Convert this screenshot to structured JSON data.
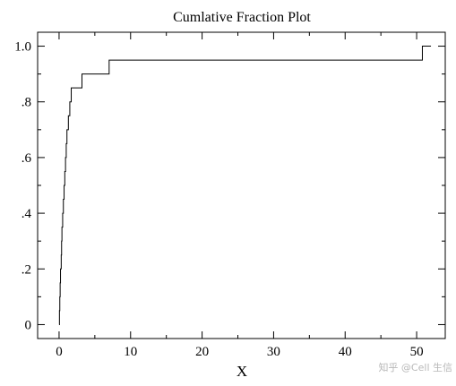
{
  "chart_data": {
    "type": "line",
    "step": true,
    "title": "Cumlative Fraction Plot",
    "xlabel": "X",
    "ylabel": "",
    "xlim": [
      -3,
      54
    ],
    "ylim": [
      -0.05,
      1.05
    ],
    "xticks": [
      0,
      10,
      20,
      30,
      40,
      50
    ],
    "xtick_labels": [
      "0",
      "10",
      "20",
      "30",
      "40",
      "50"
    ],
    "yticks": [
      0,
      0.2,
      0.4,
      0.6,
      0.8,
      1.0
    ],
    "ytick_labels": [
      "0",
      ".2",
      ".4",
      ".6",
      ".8",
      "1.0"
    ],
    "grid": false,
    "series": [
      {
        "x": [
          0,
          0.05,
          0.1,
          0.15,
          0.2,
          0.3,
          0.35,
          0.4,
          0.5,
          0.6,
          0.7,
          0.8,
          0.9,
          1.0,
          1.1,
          1.3,
          1.5,
          1.7,
          1.9,
          2.1,
          3.2,
          7.0,
          50.8,
          52.0
        ],
        "y": [
          0,
          0.05,
          0.1,
          0.15,
          0.2,
          0.25,
          0.3,
          0.35,
          0.4,
          0.45,
          0.5,
          0.55,
          0.6,
          0.65,
          0.7,
          0.75,
          0.8,
          0.85,
          0.85,
          0.85,
          0.9,
          0.95,
          1.0,
          1.0
        ]
      }
    ],
    "line_color": "#000000"
  },
  "watermark": "知乎 @Cell 生信"
}
